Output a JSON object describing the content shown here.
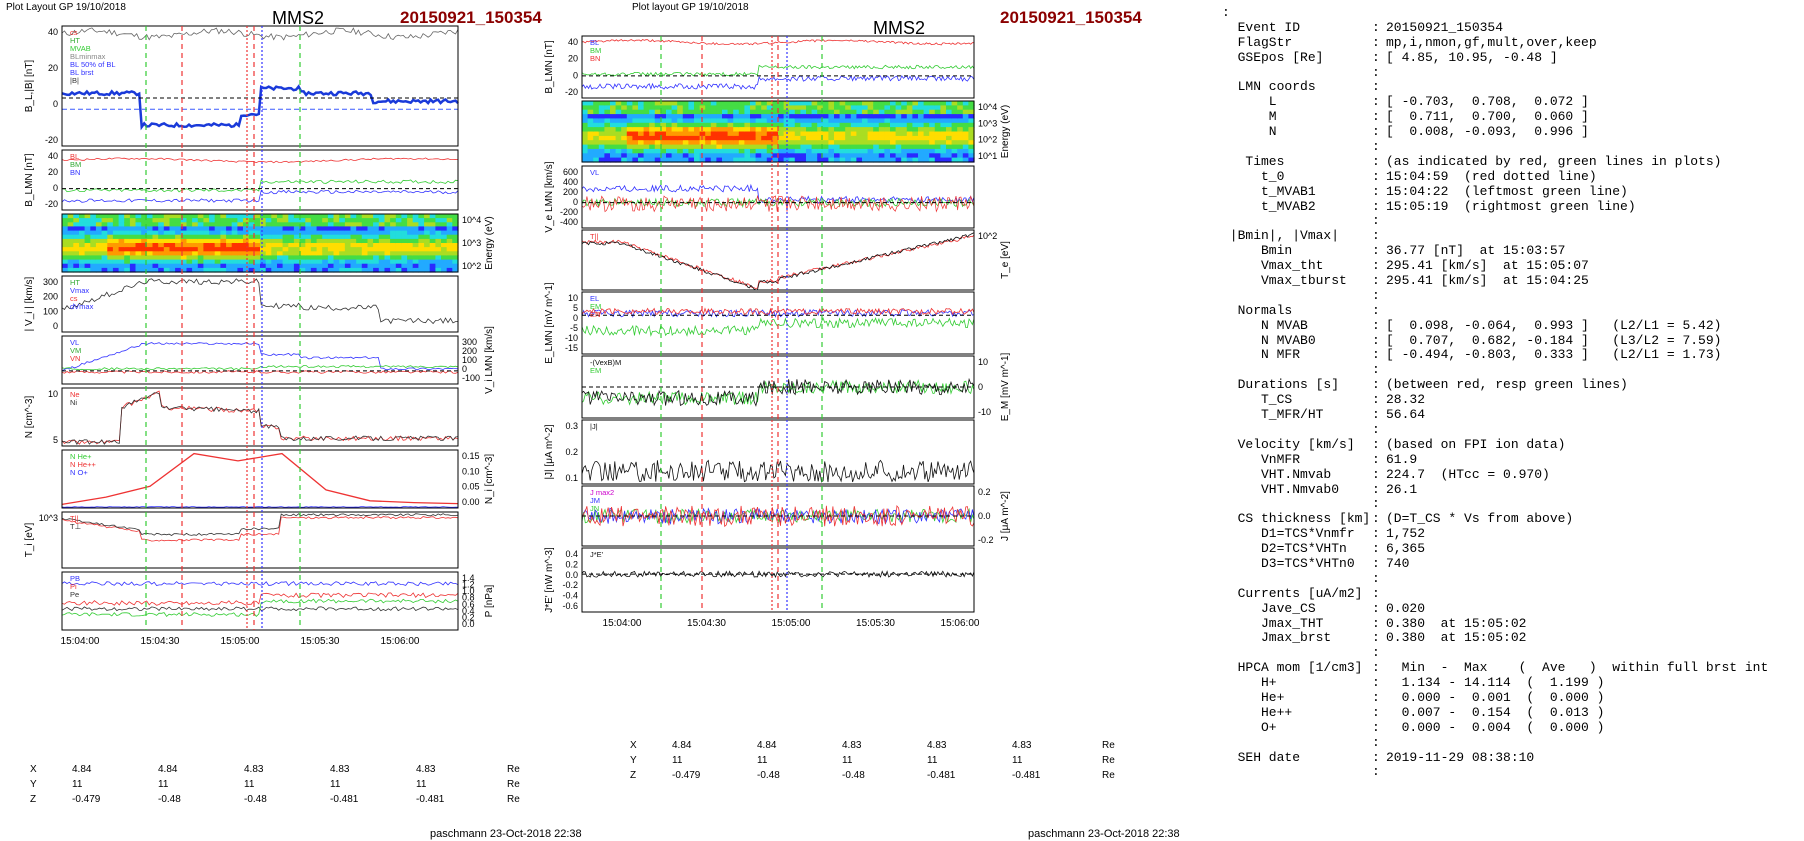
{
  "header": {
    "left": {
      "layout": "Plot Layout GP 19/10/2018",
      "spacecraft": "MMS2",
      "event": "20150921_150354"
    },
    "middle": {
      "layout": "Plot layout GP 19/10/2018",
      "spacecraft": "MMS2",
      "event": "20150921_150354"
    }
  },
  "footer": {
    "left": "paschmann 23-Oct-2018 22:38",
    "middle": "paschmann 23-Oct-2018 22:38"
  },
  "time_axis": {
    "left": [
      "15:04:00",
      "15:04:30",
      "15:05:00",
      "15:05:30",
      "15:06:00"
    ],
    "middle": [
      "15:04:00",
      "15:04:30",
      "15:05:00",
      "15:05:30",
      "15:06:00"
    ]
  },
  "position_table": {
    "unit": "Re",
    "rows": [
      {
        "label": "X",
        "values": [
          "4.84",
          "4.84",
          "4.83",
          "4.83",
          "4.83"
        ]
      },
      {
        "label": "Y",
        "values": [
          "11",
          "11",
          "11",
          "11",
          "11"
        ]
      },
      {
        "label": "Z",
        "values": [
          "-0.479",
          "-0.48",
          "-0.48",
          "-0.481",
          "-0.481"
        ]
      }
    ]
  },
  "chart_data": [
    {
      "type": "line",
      "figure": "left",
      "panels": [
        {
          "ylabel": "B_L,|B| [nT]",
          "ticks": [
            "40",
            "20",
            "0",
            "-20"
          ],
          "legend": [
            "cs",
            "HT",
            "MVAB",
            "BLminmax",
            "BL 50% of BL",
            "BL brst",
            "|B|"
          ]
        },
        {
          "ylabel": "B_LMN [nT]",
          "ticks": [
            "40",
            "20",
            "0",
            "-20"
          ],
          "legend": [
            "BL",
            "BM",
            "BN"
          ]
        },
        {
          "ylabel": "Energy (eV)",
          "ticks": [
            "10^4",
            "10^3",
            "10^2"
          ],
          "legend": []
        },
        {
          "ylabel": "| V_i | [km/s]",
          "ticks": [
            "300",
            "200",
            "100",
            "0"
          ],
          "legend": [
            "HT",
            "Vmax",
            "cs",
            "dVmax"
          ]
        },
        {
          "ylabel": "V_i LMN [km/s]",
          "ticks": [
            "300",
            "200",
            "100",
            "0",
            "-100"
          ],
          "legend": [
            "VL",
            "VM",
            "VN"
          ]
        },
        {
          "ylabel": "N [cm^-3]",
          "ticks": [
            "10",
            "5"
          ],
          "legend": [
            "Ne",
            "Ni"
          ]
        },
        {
          "ylabel": "N_i [cm^-3]",
          "ticks": [
            "0.15",
            "0.10",
            "0.05",
            "0.00"
          ],
          "legend": [
            "N He+",
            "N He++",
            "N O+"
          ]
        },
        {
          "ylabel": "T_i [eV]",
          "ticks": [
            "10^3"
          ],
          "legend": [
            "T||",
            "T⊥"
          ]
        },
        {
          "ylabel": "P [nPa]",
          "ticks": [
            "1.4",
            "1.2",
            "1.0",
            "0.8",
            "0.6",
            "0.4",
            "0.2",
            "0.0"
          ],
          "legend": [
            "PB",
            "Pi",
            "Pe"
          ]
        }
      ],
      "series_hint": {
        "He++": [
          0.01,
          0.03,
          0.06,
          0.15,
          0.13,
          0.15,
          0.05,
          0.02,
          0.015,
          0.012
        ]
      }
    },
    {
      "type": "line",
      "figure": "middle",
      "panels": [
        {
          "ylabel": "B_LMN [nT]",
          "ticks": [
            "40",
            "20",
            "0",
            "-20"
          ],
          "legend": [
            "BL",
            "BM",
            "BN"
          ]
        },
        {
          "ylabel": "Energy (eV)",
          "ticks": [
            "10^4",
            "10^3",
            "10^2",
            "10^1"
          ],
          "legend": []
        },
        {
          "ylabel": "V_e LMN [km/s]",
          "ticks": [
            "600",
            "400",
            "200",
            "0",
            "-200",
            "-400"
          ],
          "legend": [
            "VL"
          ]
        },
        {
          "ylabel": "T_e [eV]",
          "ticks": [
            "10^2"
          ],
          "legend": [
            "T||"
          ]
        },
        {
          "ylabel": "E_LMN [mV m^-1]",
          "ticks": [
            "10",
            "5",
            "0",
            "-5",
            "-10",
            "-15"
          ],
          "legend": [
            "EL",
            "EM",
            "EN"
          ]
        },
        {
          "ylabel": "E_M [mV m^-1]",
          "ticks": [
            "10",
            "0",
            "-10"
          ],
          "legend": [
            "-(VexB)M",
            "EM"
          ]
        },
        {
          "ylabel": "|J| [μA m^-2]",
          "ticks": [
            "0.3",
            "0.2",
            "0.1"
          ],
          "legend": [
            "|J|"
          ]
        },
        {
          "ylabel": "J [μA m^-2]",
          "ticks": [
            "0.2",
            "0.0",
            "-0.2"
          ],
          "legend": [
            "J max2",
            "JM",
            "JN"
          ]
        },
        {
          "ylabel": "J*E' [nW m^-3]",
          "ticks": [
            "0.4",
            "0.2",
            "0.0",
            "-0.2",
            "-0.4",
            "-0.6"
          ],
          "legend": [
            "J*E'"
          ]
        }
      ]
    }
  ],
  "info": [
    {
      "k": ":",
      "c": "",
      "v": ""
    },
    {
      "k": "  Event ID",
      "c": ":",
      "v": "20150921_150354"
    },
    {
      "k": "  FlagStr",
      "c": ":",
      "v": "mp,i,nmon,gf,mult,over,keep"
    },
    {
      "k": "  GSEpos [Re]",
      "c": ":",
      "v": "[ 4.85, 10.95, -0.48 ]"
    },
    {
      "k": "",
      "c": ":",
      "v": ""
    },
    {
      "k": "  LMN coords",
      "c": ":",
      "v": ""
    },
    {
      "k": "      L",
      "c": ":",
      "v": "[ -0.703,  0.708,  0.072 ]"
    },
    {
      "k": "      M",
      "c": ":",
      "v": "[  0.711,  0.700,  0.060 ]"
    },
    {
      "k": "      N",
      "c": ":",
      "v": "[  0.008, -0.093,  0.996 ]"
    },
    {
      "k": "",
      "c": ":",
      "v": ""
    },
    {
      "k": "   Times",
      "c": ":",
      "v": "(as indicated by red, green lines in plots)"
    },
    {
      "k": "     t_0",
      "c": ":",
      "v": "15:04:59  (red dotted line)"
    },
    {
      "k": "     t_MVAB1",
      "c": ":",
      "v": "15:04:22  (leftmost green line)"
    },
    {
      "k": "     t_MVAB2",
      "c": ":",
      "v": "15:05:19  (rightmost green line)"
    },
    {
      "k": "",
      "c": ":",
      "v": ""
    },
    {
      "k": " |Bmin|, |Vmax|",
      "c": ":",
      "v": ""
    },
    {
      "k": "     Bmin",
      "c": ":",
      "v": "36.77 [nT]  at 15:03:57"
    },
    {
      "k": "     Vmax_tht",
      "c": ":",
      "v": "295.41 [km/s]  at 15:05:07"
    },
    {
      "k": "     Vmax_tburst",
      "c": ":",
      "v": "295.41 [km/s]  at 15:04:25"
    },
    {
      "k": "",
      "c": ":",
      "v": ""
    },
    {
      "k": "  Normals",
      "c": ":",
      "v": ""
    },
    {
      "k": "     N MVAB",
      "c": ":",
      "v": "[  0.098, -0.064,  0.993 ]   (L2/L1 = 5.42)"
    },
    {
      "k": "     N MVAB0",
      "c": ":",
      "v": "[  0.707,  0.682, -0.184 ]   (L3/L2 = 7.59)"
    },
    {
      "k": "     N MFR",
      "c": ":",
      "v": "[ -0.494, -0.803,  0.333 ]   (L2/L1 = 1.73)"
    },
    {
      "k": "",
      "c": ":",
      "v": ""
    },
    {
      "k": "  Durations [s]",
      "c": ":",
      "v": "(between red, resp green lines)"
    },
    {
      "k": "     T_CS",
      "c": ":",
      "v": "28.32"
    },
    {
      "k": "     T_MFR/HT",
      "c": ":",
      "v": "56.64"
    },
    {
      "k": "",
      "c": ":",
      "v": ""
    },
    {
      "k": "  Velocity [km/s]",
      "c": ":",
      "v": "(based on FPI ion data)"
    },
    {
      "k": "     VnMFR",
      "c": ":",
      "v": "61.9"
    },
    {
      "k": "     VHT.Nmvab",
      "c": ":",
      "v": "224.7  (HTcc = 0.970)"
    },
    {
      "k": "     VHT.Nmvab0",
      "c": ":",
      "v": "26.1"
    },
    {
      "k": "",
      "c": ":",
      "v": ""
    },
    {
      "k": "  CS thickness [km]",
      "c": ":",
      "v": "(D=T_CS * Vs from above)"
    },
    {
      "k": "     D1=TCS*Vnmfr",
      "c": ":",
      "v": "1,752"
    },
    {
      "k": "     D2=TCS*VHTn",
      "c": ":",
      "v": "6,365"
    },
    {
      "k": "     D3=TCS*VHTn0",
      "c": ":",
      "v": "740"
    },
    {
      "k": "",
      "c": ":",
      "v": ""
    },
    {
      "k": "  Currents [uA/m2]",
      "c": ":",
      "v": ""
    },
    {
      "k": "     Jave_CS",
      "c": ":",
      "v": "0.020"
    },
    {
      "k": "     Jmax_THT",
      "c": ":",
      "v": "0.380  at 15:05:02"
    },
    {
      "k": "     Jmax_brst",
      "c": ":",
      "v": "0.380  at 15:05:02"
    },
    {
      "k": "",
      "c": ":",
      "v": ""
    },
    {
      "k": "  HPCA mom [1/cm3]",
      "c": ":",
      "v": "  Min  -  Max    (  Ave   )  within full brst int"
    },
    {
      "k": "     H+",
      "c": ":",
      "v": "  1.134 - 14.114  (  1.199 )"
    },
    {
      "k": "     He+",
      "c": ":",
      "v": "  0.000 -  0.001  (  0.000 )"
    },
    {
      "k": "     He++",
      "c": ":",
      "v": "  0.007 -  0.154  (  0.013 )"
    },
    {
      "k": "     O+",
      "c": ":",
      "v": "  0.000 -  0.004  (  0.000 )"
    },
    {
      "k": "",
      "c": ":",
      "v": ""
    },
    {
      "k": "  SEH date",
      "c": ":",
      "v": "2019-11-29 08:38:10"
    },
    {
      "k": "",
      "c": ":",
      "v": ""
    }
  ]
}
